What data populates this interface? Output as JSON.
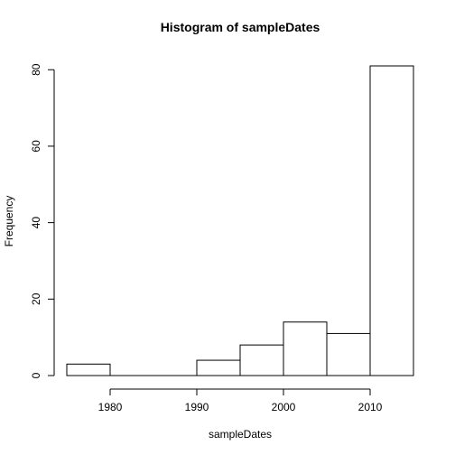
{
  "chart_data": {
    "type": "bar",
    "title": "Histogram of sampleDates",
    "xlabel": "sampleDates",
    "ylabel": "Frequency",
    "bins": [
      {
        "start": 1975,
        "end": 1980,
        "count": 3
      },
      {
        "start": 1980,
        "end": 1985,
        "count": 0
      },
      {
        "start": 1985,
        "end": 1990,
        "count": 0
      },
      {
        "start": 1990,
        "end": 1995,
        "count": 4
      },
      {
        "start": 1995,
        "end": 2000,
        "count": 8
      },
      {
        "start": 2000,
        "end": 2005,
        "count": 14
      },
      {
        "start": 2005,
        "end": 2010,
        "count": 11
      },
      {
        "start": 2010,
        "end": 2015,
        "count": 81
      }
    ],
    "xticks": [
      1980,
      1990,
      2000,
      2010
    ],
    "yticks": [
      0,
      20,
      40,
      60,
      80
    ],
    "xlim": [
      1975,
      2015
    ],
    "ylim": [
      0,
      81
    ],
    "grid": false,
    "legend": "none"
  }
}
